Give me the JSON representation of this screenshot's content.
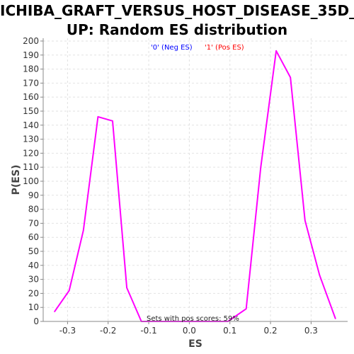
{
  "chart_data": {
    "type": "line",
    "title_lines": [
      "ICHIBA_GRAFT_VERSUS_HOST_DISEASE_35D_",
      "UP: Random ES distribution"
    ],
    "xlabel": "ES",
    "ylabel": "P(ES)",
    "xlim": [
      -0.36,
      0.39
    ],
    "ylim": [
      0,
      202
    ],
    "xticks": [
      -0.3,
      -0.2,
      -0.1,
      0.0,
      0.1,
      0.2,
      0.3
    ],
    "xtick_labels": [
      "-0.3",
      "-0.2",
      "-0.1",
      "0.0",
      "0.1",
      "0.2",
      "0.3"
    ],
    "yticks": [
      0,
      10,
      20,
      30,
      40,
      50,
      60,
      70,
      80,
      90,
      100,
      110,
      120,
      130,
      140,
      150,
      160,
      170,
      180,
      190,
      200
    ],
    "grid": true,
    "legend": [
      {
        "label": "'0' (Neg ES)",
        "color": "#0000ff"
      },
      {
        "label": "'1' (Pos ES)",
        "color": "#ff0000"
      }
    ],
    "annotation": "Sets with pos scores: 59%",
    "series": [
      {
        "name": "distribution",
        "color": "#ff00ff",
        "x": [
          -0.332,
          -0.296,
          -0.261,
          -0.225,
          -0.189,
          -0.154,
          -0.118,
          -0.083,
          0.0,
          0.095,
          0.14,
          0.176,
          0.214,
          0.249,
          0.285,
          0.321,
          0.36
        ],
        "y": [
          7,
          22,
          65,
          146,
          143,
          24,
          0,
          0,
          0,
          0,
          9,
          110,
          193,
          174,
          72,
          33,
          2
        ]
      }
    ]
  }
}
